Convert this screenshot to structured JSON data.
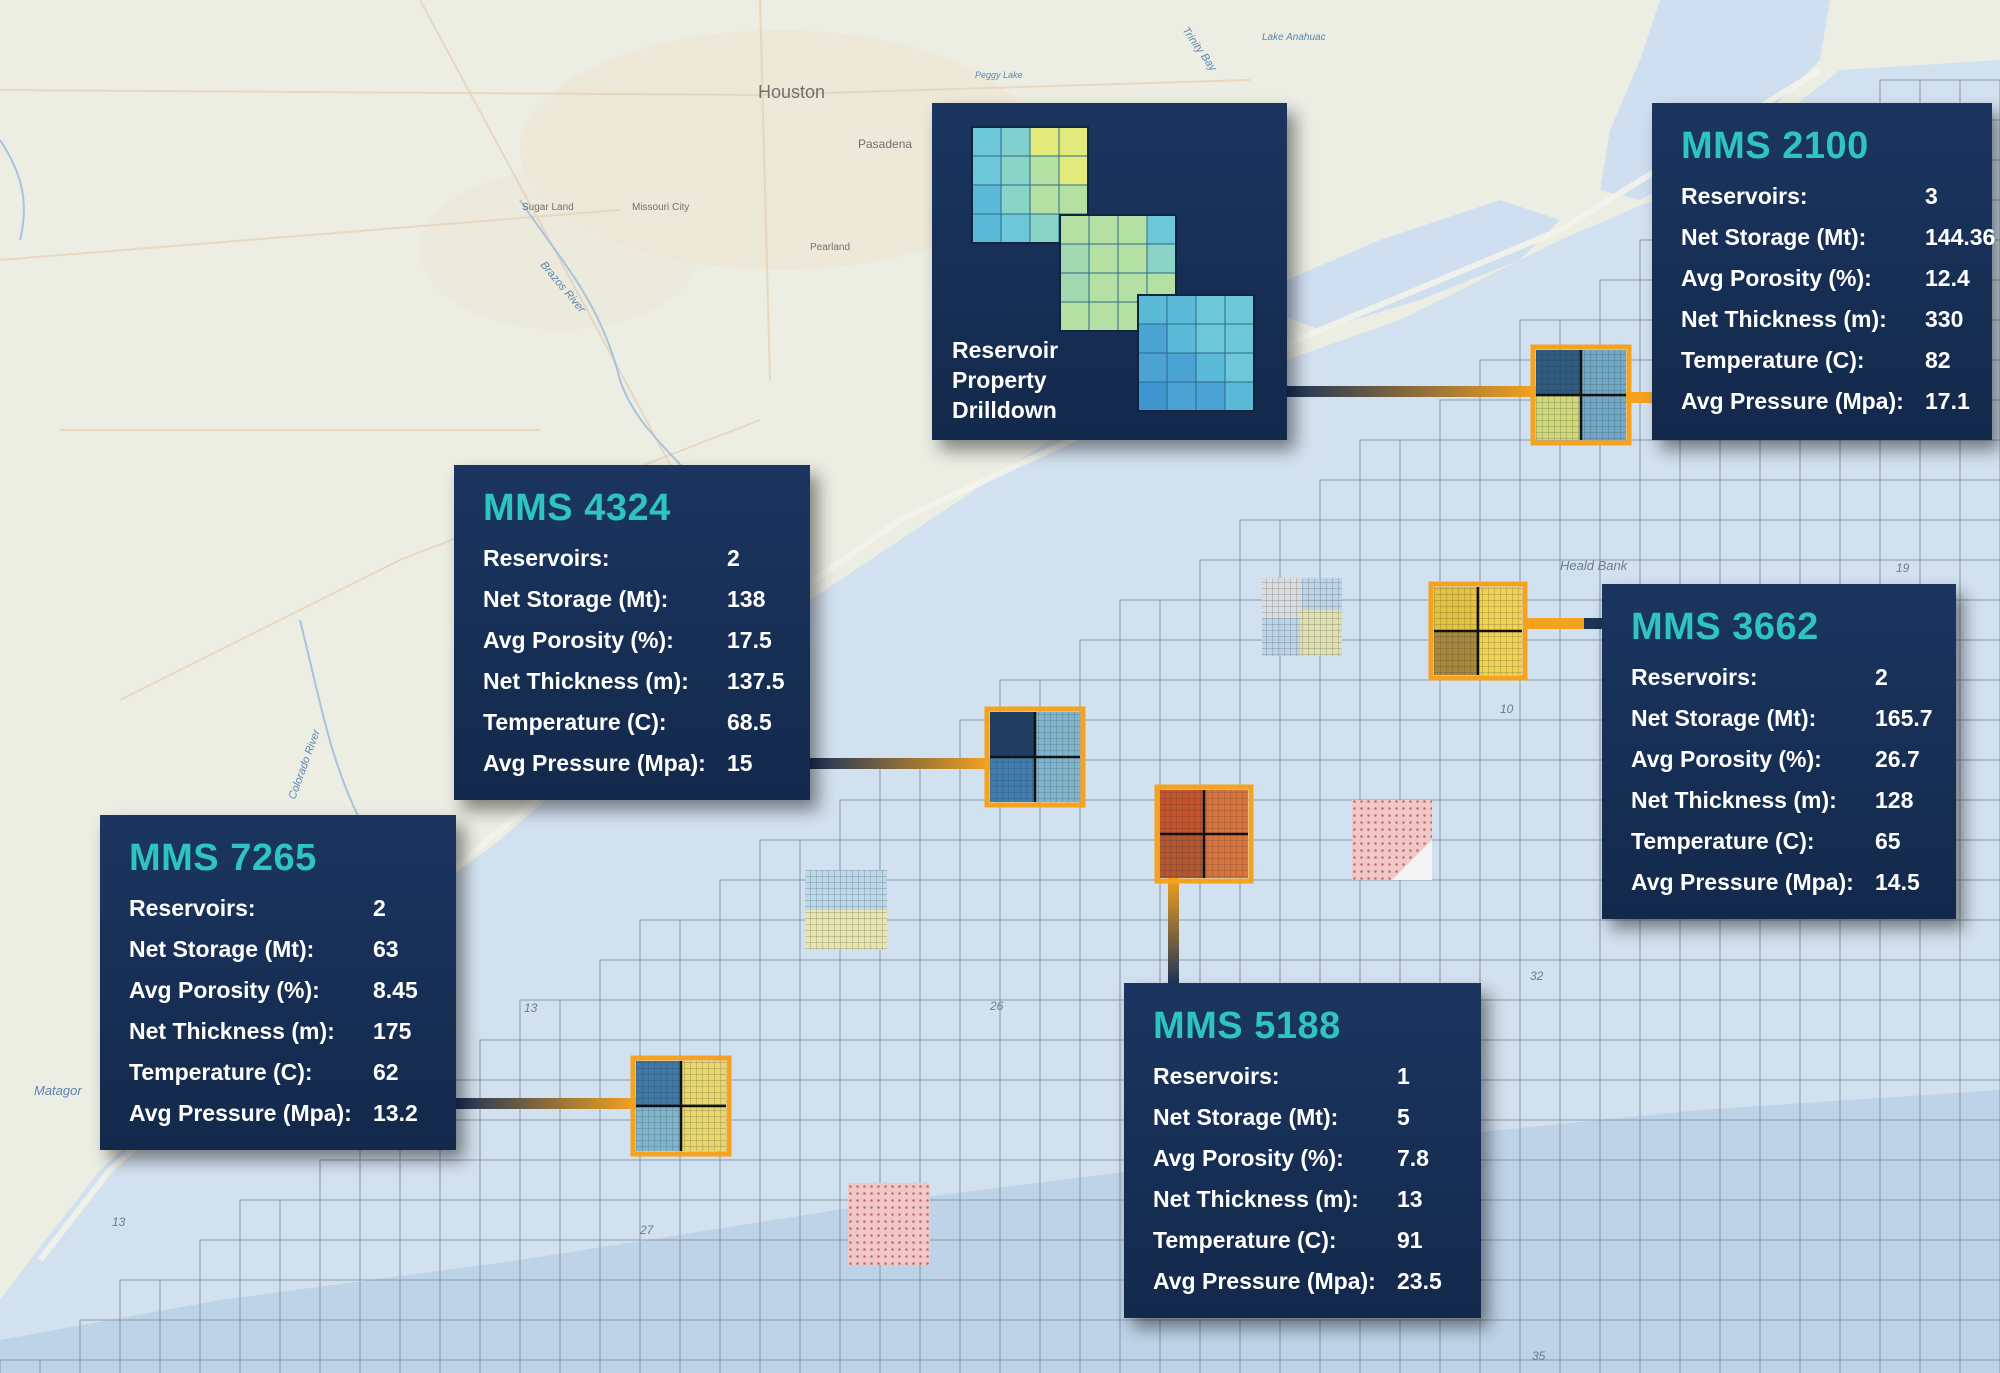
{
  "map_labels": {
    "houston": "Houston",
    "pasadena": "Pasadena",
    "sugar_land": "Sugar Land",
    "missouri_city": "Missouri City",
    "pearland": "Pearland",
    "brazos_river": "Brazos River",
    "colorado_river": "Colorado River",
    "trinity_bay": "Trinity Bay",
    "lake_anahuac": "Lake Anahuac",
    "peggy_lake": "Peggy Lake",
    "heald_bank": "Heald Bank",
    "matagorda": "Matagor",
    "block_numbers": [
      "19",
      "10",
      "13",
      "26",
      "13",
      "27",
      "32",
      "35"
    ]
  },
  "drilldown": {
    "label_lines": [
      "Reservoir",
      "Property",
      "Drilldown"
    ]
  },
  "panels": [
    {
      "id": "mms-2100",
      "title": "MMS 2100",
      "rows": [
        {
          "label": "Reservoirs:",
          "value": "3"
        },
        {
          "label": "Net Storage (Mt):",
          "value": "144.36"
        },
        {
          "label": "Avg Porosity (%):",
          "value": "12.4"
        },
        {
          "label": "Net Thickness (m):",
          "value": "330"
        },
        {
          "label": "Temperature (C):",
          "value": "82"
        },
        {
          "label": "Avg Pressure (Mpa):",
          "value": "17.1"
        }
      ]
    },
    {
      "id": "mms-4324",
      "title": "MMS 4324",
      "rows": [
        {
          "label": "Reservoirs:",
          "value": "2"
        },
        {
          "label": "Net Storage (Mt):",
          "value": "138"
        },
        {
          "label": "Avg Porosity (%):",
          "value": "17.5"
        },
        {
          "label": "Net Thickness (m):",
          "value": "137.5"
        },
        {
          "label": "Temperature (C):",
          "value": "68.5"
        },
        {
          "label": "Avg Pressure (Mpa):",
          "value": "15"
        }
      ]
    },
    {
      "id": "mms-3662",
      "title": "MMS 3662",
      "rows": [
        {
          "label": "Reservoirs:",
          "value": "2"
        },
        {
          "label": "Net Storage (Mt):",
          "value": "165.7"
        },
        {
          "label": "Avg Porosity (%):",
          "value": "26.7"
        },
        {
          "label": "Net Thickness (m):",
          "value": "128"
        },
        {
          "label": "Temperature (C):",
          "value": "65"
        },
        {
          "label": "Avg Pressure (Mpa):",
          "value": "14.5"
        }
      ]
    },
    {
      "id": "mms-7265",
      "title": "MMS 7265",
      "rows": [
        {
          "label": "Reservoirs:",
          "value": "2"
        },
        {
          "label": "Net Storage (Mt):",
          "value": "63"
        },
        {
          "label": "Avg Porosity (%):",
          "value": "8.45"
        },
        {
          "label": "Net Thickness (m):",
          "value": "175"
        },
        {
          "label": "Temperature (C):",
          "value": "62"
        },
        {
          "label": "Avg Pressure (Mpa):",
          "value": "13.2"
        }
      ]
    },
    {
      "id": "mms-5188",
      "title": "MMS 5188",
      "rows": [
        {
          "label": "Reservoirs:",
          "value": "1"
        },
        {
          "label": "Net Storage (Mt):",
          "value": "5"
        },
        {
          "label": "Avg Porosity (%):",
          "value": "7.8"
        },
        {
          "label": "Net Thickness (m):",
          "value": "13"
        },
        {
          "label": "Temperature (C):",
          "value": "91"
        },
        {
          "label": "Avg Pressure (Mpa):",
          "value": "23.5"
        }
      ]
    }
  ],
  "colors": {
    "panel_bg": "#14294b",
    "title_teal": "#2ec4c0",
    "connector_orange": "#f5a21f",
    "land": "#eceee4",
    "water": "#cfdff0",
    "grid_line": "#7f8e9c"
  }
}
